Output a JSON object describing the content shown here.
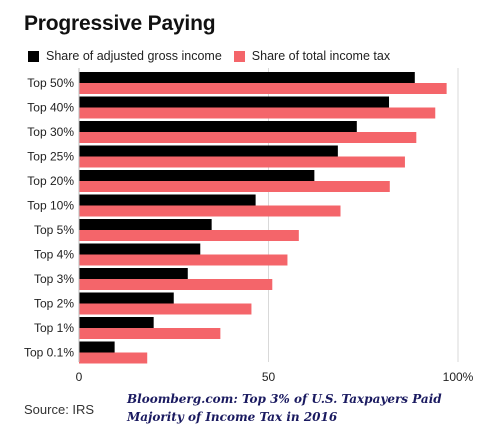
{
  "title": "Progressive Paying",
  "source": "Source: IRS",
  "caption": {
    "line1": "Bloomberg.com: Top 3% of U.S. Taxpayers Paid",
    "line2": "Majority of Income Tax in 2016"
  },
  "colors": {
    "agi": "#000000",
    "tax": "#f4656a",
    "grid": "#d9d9d9",
    "text": "#222222"
  },
  "chart_data": {
    "type": "bar",
    "orientation": "horizontal",
    "categories": [
      "Top 50%",
      "Top 40%",
      "Top 30%",
      "Top 25%",
      "Top 20%",
      "Top 10%",
      "Top 5%",
      "Top 4%",
      "Top 3%",
      "Top 2%",
      "Top 1%",
      "Top 0.1%"
    ],
    "series": [
      {
        "name": "Share of adjusted gross income",
        "values": [
          88.6,
          81.8,
          73.3,
          68.3,
          62.1,
          46.6,
          35.0,
          32.0,
          28.7,
          25.0,
          19.7,
          9.4
        ]
      },
      {
        "name": "Share of total income tax",
        "values": [
          97.0,
          94.0,
          89.0,
          86.0,
          82.0,
          69.0,
          58.0,
          55.0,
          51.0,
          45.5,
          37.3,
          18.0
        ]
      }
    ],
    "x_ticks": [
      {
        "value": 0,
        "label": "0"
      },
      {
        "value": 50,
        "label": "50"
      },
      {
        "value": 100,
        "label": "100%"
      }
    ],
    "xlim": [
      0,
      100
    ],
    "legend_position": "top-left",
    "grid": true,
    "xlabel": "",
    "ylabel": ""
  }
}
